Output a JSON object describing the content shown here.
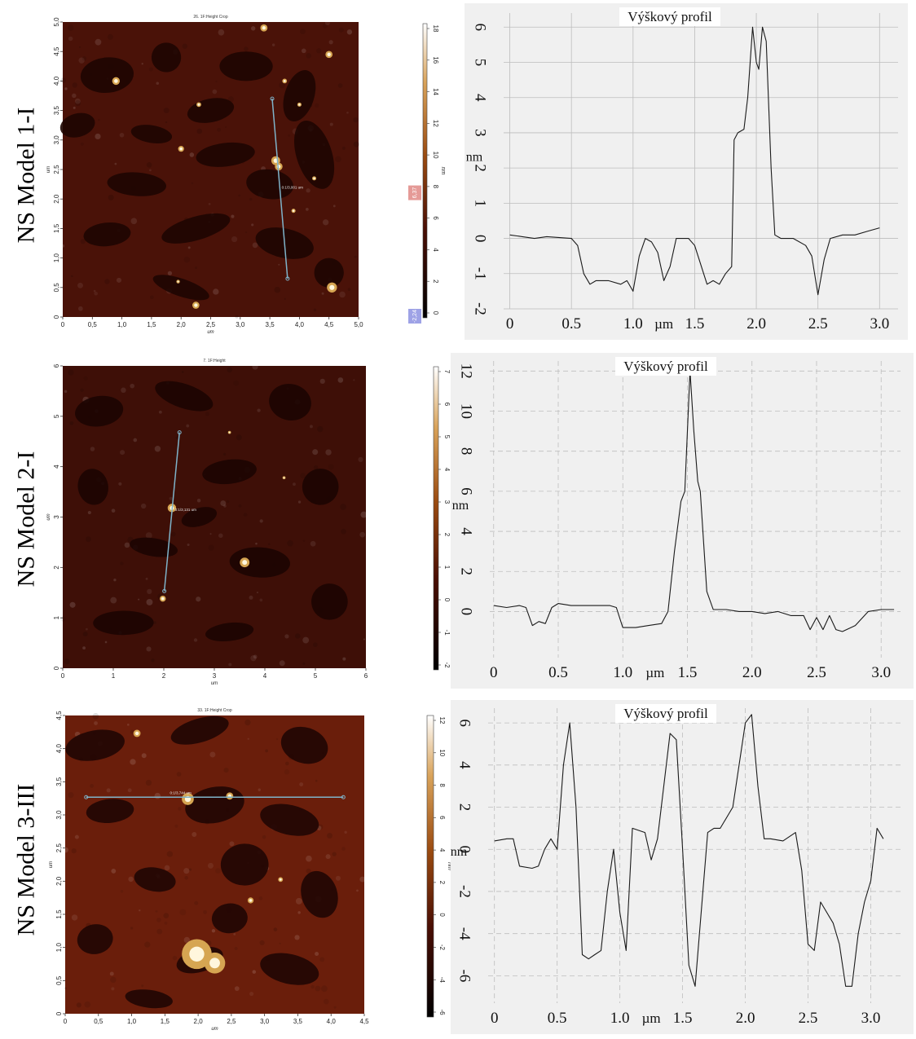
{
  "rows": [
    {
      "label": "NS Model 1-I",
      "afm": {
        "title": "26. 1F:Height Crop",
        "xlabel": "um",
        "ylabel": "um",
        "xticks": [
          "0",
          "0,5",
          "1,0",
          "1,5",
          "2,0",
          "2,5",
          "3,0",
          "3,5",
          "4,0",
          "4,5",
          "5,0"
        ],
        "yticks": [
          "0",
          "0,5",
          "1,0",
          "1,5",
          "2,0",
          "2,5",
          "3,0",
          "3,5",
          "4,0",
          "4,5",
          "5,0"
        ],
        "line_label": "0:1/3,001 um",
        "base_color": "#4a1208",
        "dark_color": "#1e0502"
      },
      "colorbar": {
        "unit": "nm",
        "ticks": [
          "18",
          "16",
          "14",
          "12",
          "10",
          "8",
          "6",
          "4",
          "2",
          "0"
        ],
        "marker_top": "6,37",
        "marker_bottom": "-2,24",
        "marker_top_color": "#e59a97",
        "marker_bottom_color": "#9ea2e6"
      }
    },
    {
      "label": "NS Model 2-I",
      "afm": {
        "title": "7. 1F:Height",
        "xlabel": "um",
        "ylabel": "um",
        "xticks": [
          "0",
          "1",
          "2",
          "3",
          "4",
          "5",
          "6"
        ],
        "yticks": [
          "0",
          "1",
          "2",
          "3",
          "4",
          "5",
          "6"
        ],
        "line_label": "0:1/3,131 um",
        "base_color": "#3e0f07",
        "dark_color": "#1c0402"
      },
      "colorbar": {
        "unit": "nm",
        "ticks": [
          "7",
          "6",
          "5",
          "4",
          "3",
          "2",
          "1",
          "0",
          "-1",
          "-2"
        ],
        "marker_top": "",
        "marker_bottom": ""
      }
    },
    {
      "label": "NS Model 3-III",
      "afm": {
        "title": "33. 1F:Height Crop",
        "xlabel": "um",
        "ylabel": "um",
        "xticks": [
          "0",
          "0,5",
          "1,0",
          "1,5",
          "2,0",
          "2,5",
          "3,0",
          "3,5",
          "4,0",
          "4,5"
        ],
        "yticks": [
          "0",
          "0,5",
          "1,0",
          "1,5",
          "2,0",
          "2,5",
          "3,0",
          "3,5",
          "4,0",
          "4,5"
        ],
        "line_label": "0:1/3,744 um",
        "base_color": "#6a1e0b",
        "dark_color": "#200603"
      },
      "colorbar": {
        "unit": "nm",
        "ticks": [
          "12",
          "10",
          "8",
          "6",
          "4",
          "2",
          "0",
          "-2",
          "-4",
          "-6"
        ],
        "marker_top": "",
        "marker_bottom": ""
      }
    }
  ],
  "chart_data": [
    {
      "type": "line",
      "title": "Výškový profil",
      "xlabel": "µm",
      "ylabel": "nm",
      "xlim": [
        -0.05,
        3.15
      ],
      "ylim": [
        -2,
        6.4
      ],
      "xticks": [
        0,
        0.5,
        1.0,
        1.5,
        2.0,
        2.5,
        3.0
      ],
      "xtick_labels": [
        "0",
        "0.5",
        "1.0",
        "1.5",
        "2.0",
        "2.5",
        "3.0"
      ],
      "yticks": [
        -2,
        -1,
        0,
        1,
        2,
        3,
        4,
        5,
        6
      ],
      "ytick_labels": [
        "-2",
        "-1",
        "0",
        "1",
        "2",
        "3",
        "4",
        "5",
        "6"
      ],
      "grid": true,
      "x": [
        0,
        0.1,
        0.2,
        0.3,
        0.5,
        0.55,
        0.6,
        0.65,
        0.7,
        0.8,
        0.9,
        0.95,
        1.0,
        1.05,
        1.1,
        1.15,
        1.2,
        1.25,
        1.3,
        1.35,
        1.4,
        1.45,
        1.5,
        1.6,
        1.65,
        1.7,
        1.75,
        1.8,
        1.82,
        1.85,
        1.9,
        1.93,
        1.97,
        2.0,
        2.02,
        2.05,
        2.08,
        2.12,
        2.15,
        2.2,
        2.3,
        2.4,
        2.45,
        2.5,
        2.55,
        2.6,
        2.7,
        2.8,
        2.9,
        3.0
      ],
      "y": [
        0.1,
        0.05,
        0.0,
        0.05,
        0.0,
        -0.2,
        -1.0,
        -1.3,
        -1.2,
        -1.2,
        -1.3,
        -1.2,
        -1.5,
        -0.5,
        0.0,
        -0.1,
        -0.4,
        -1.2,
        -0.8,
        0.0,
        0.0,
        0.0,
        -0.2,
        -1.3,
        -1.2,
        -1.3,
        -1.0,
        -0.8,
        2.8,
        3.0,
        3.1,
        4.0,
        6.0,
        5.0,
        4.8,
        6.0,
        5.6,
        2.0,
        0.1,
        0.0,
        0.0,
        -0.2,
        -0.5,
        -1.6,
        -0.6,
        0.0,
        0.1,
        0.1,
        0.2,
        0.3
      ]
    },
    {
      "type": "line",
      "title": "Výškový profil",
      "xlabel": "µm",
      "ylabel": "nm",
      "xlim": [
        -0.03,
        3.15
      ],
      "ylim": [
        -2.3,
        12.5
      ],
      "xticks": [
        0,
        0.5,
        1.0,
        1.5,
        2.0,
        2.5,
        3.0
      ],
      "xtick_labels": [
        "0",
        "0.5",
        "1.0",
        "1.5",
        "2.0",
        "2.5",
        "3.0"
      ],
      "yticks": [
        0,
        2,
        4,
        6,
        8,
        10,
        12
      ],
      "ytick_labels": [
        "0",
        "2",
        "4",
        "6",
        "8",
        "10",
        "12"
      ],
      "grid": true,
      "x": [
        0,
        0.1,
        0.2,
        0.25,
        0.3,
        0.35,
        0.4,
        0.45,
        0.5,
        0.6,
        0.7,
        0.8,
        0.9,
        0.95,
        1.0,
        1.05,
        1.1,
        1.2,
        1.3,
        1.35,
        1.4,
        1.45,
        1.48,
        1.5,
        1.52,
        1.55,
        1.58,
        1.6,
        1.65,
        1.7,
        1.8,
        1.9,
        2.0,
        2.1,
        2.2,
        2.3,
        2.4,
        2.45,
        2.5,
        2.55,
        2.6,
        2.65,
        2.7,
        2.8,
        2.9,
        3.0,
        3.1
      ],
      "y": [
        0.3,
        0.2,
        0.3,
        0.2,
        -0.7,
        -0.5,
        -0.6,
        0.2,
        0.4,
        0.3,
        0.3,
        0.3,
        0.3,
        0.2,
        -0.8,
        -0.8,
        -0.8,
        -0.7,
        -0.6,
        0.0,
        3.0,
        5.5,
        6.0,
        9.0,
        12.0,
        9.0,
        6.5,
        6.0,
        1.0,
        0.1,
        0.1,
        0.0,
        0.0,
        -0.1,
        0.0,
        -0.2,
        -0.2,
        -0.9,
        -0.3,
        -0.9,
        -0.2,
        -0.9,
        -1.0,
        -0.7,
        0.0,
        0.1,
        0.1
      ]
    },
    {
      "type": "line",
      "title": "Výškový profil",
      "xlabel": "µm",
      "ylabel": "nm",
      "xlim": [
        -0.05,
        3.25
      ],
      "ylim": [
        -7.3,
        6.7
      ],
      "xticks": [
        0,
        0.5,
        1.0,
        1.5,
        2.0,
        2.5,
        3.0
      ],
      "xtick_labels": [
        "0",
        "0.5",
        "1.0",
        "1.5",
        "2.0",
        "2.5",
        "3.0"
      ],
      "yticks": [
        -6,
        -4,
        -2,
        0,
        2,
        4,
        6
      ],
      "ytick_labels": [
        "-6",
        "-4",
        "-2",
        "0",
        "2",
        "4",
        "6"
      ],
      "grid": true,
      "x": [
        0,
        0.1,
        0.15,
        0.2,
        0.3,
        0.35,
        0.4,
        0.45,
        0.5,
        0.55,
        0.6,
        0.65,
        0.7,
        0.75,
        0.8,
        0.85,
        0.9,
        0.95,
        1.0,
        1.05,
        1.1,
        1.2,
        1.25,
        1.3,
        1.35,
        1.4,
        1.45,
        1.5,
        1.55,
        1.6,
        1.7,
        1.75,
        1.8,
        1.9,
        1.95,
        2.0,
        2.05,
        2.1,
        2.15,
        2.2,
        2.3,
        2.4,
        2.45,
        2.5,
        2.55,
        2.6,
        2.7,
        2.75,
        2.8,
        2.85,
        2.9,
        2.95,
        3.0,
        3.05,
        3.1
      ],
      "y": [
        0.4,
        0.5,
        0.5,
        -0.8,
        -0.9,
        -0.8,
        0.0,
        0.5,
        0.0,
        4.0,
        6.0,
        2.0,
        -5.0,
        -5.2,
        -5.0,
        -4.8,
        -2.0,
        0.0,
        -3.0,
        -4.8,
        1.0,
        0.8,
        -0.5,
        0.5,
        3.0,
        5.5,
        5.2,
        0.0,
        -5.5,
        -6.5,
        0.8,
        1.0,
        1.0,
        2.0,
        4.0,
        6.0,
        6.4,
        3.0,
        0.5,
        0.5,
        0.4,
        0.8,
        -1.0,
        -4.5,
        -4.8,
        -2.5,
        -3.5,
        -4.5,
        -6.5,
        -6.5,
        -4.0,
        -2.5,
        -1.5,
        1.0,
        0.5
      ]
    }
  ]
}
